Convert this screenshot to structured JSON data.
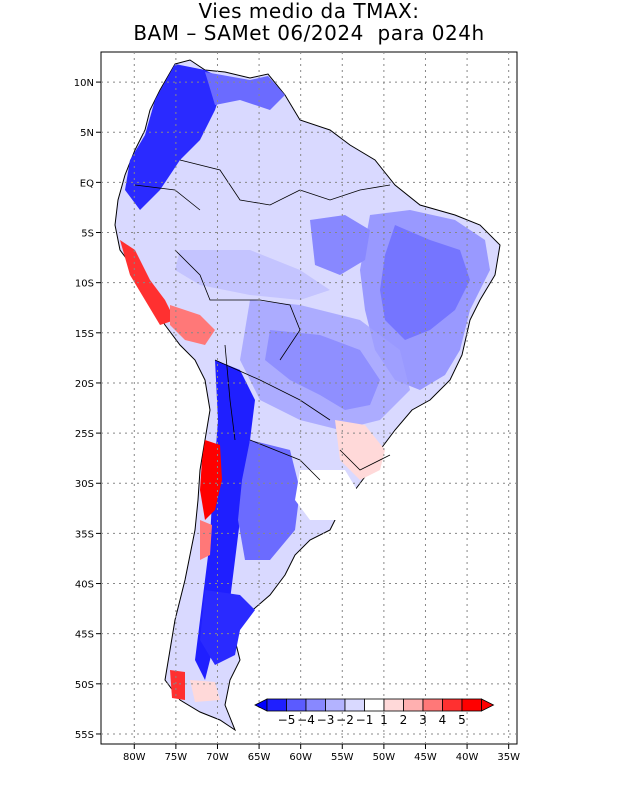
{
  "title": {
    "line1": "Vies medio da TMAX:",
    "line2": "BAM – SAMet 06/2024  para 024h"
  },
  "map": {
    "lat_labels": [
      "10N",
      "5N",
      "EQ",
      "5S",
      "10S",
      "15S",
      "20S",
      "25S",
      "30S",
      "35S",
      "40S",
      "45S",
      "50S",
      "55S"
    ],
    "lat_values": [
      10,
      5,
      0,
      -5,
      -10,
      -15,
      -20,
      -25,
      -30,
      -35,
      -40,
      -45,
      -50,
      -55
    ],
    "lon_labels": [
      "80W",
      "75W",
      "70W",
      "65W",
      "60W",
      "55W",
      "50W",
      "45W",
      "40W",
      "35W"
    ],
    "lon_values": [
      -80,
      -75,
      -70,
      -65,
      -60,
      -55,
      -50,
      -45,
      -40,
      -35
    ],
    "lon_range": [
      -84,
      -34
    ],
    "lat_range": [
      -56,
      13
    ],
    "grid": "dotted"
  },
  "colorbar": {
    "labels": [
      "−5",
      "−4",
      "−3",
      "−2",
      "−1",
      "1",
      "2",
      "3",
      "4",
      "5"
    ],
    "colors": [
      "#1f1fff",
      "#5b5bff",
      "#8888ff",
      "#b3b3ff",
      "#d9d9ff",
      "#ffffff",
      "#ffd9d9",
      "#ffb0b0",
      "#ff7878",
      "#ff3030",
      "#ff0000"
    ],
    "min_color": "#0000ff",
    "max_color": "#ff0000"
  }
}
